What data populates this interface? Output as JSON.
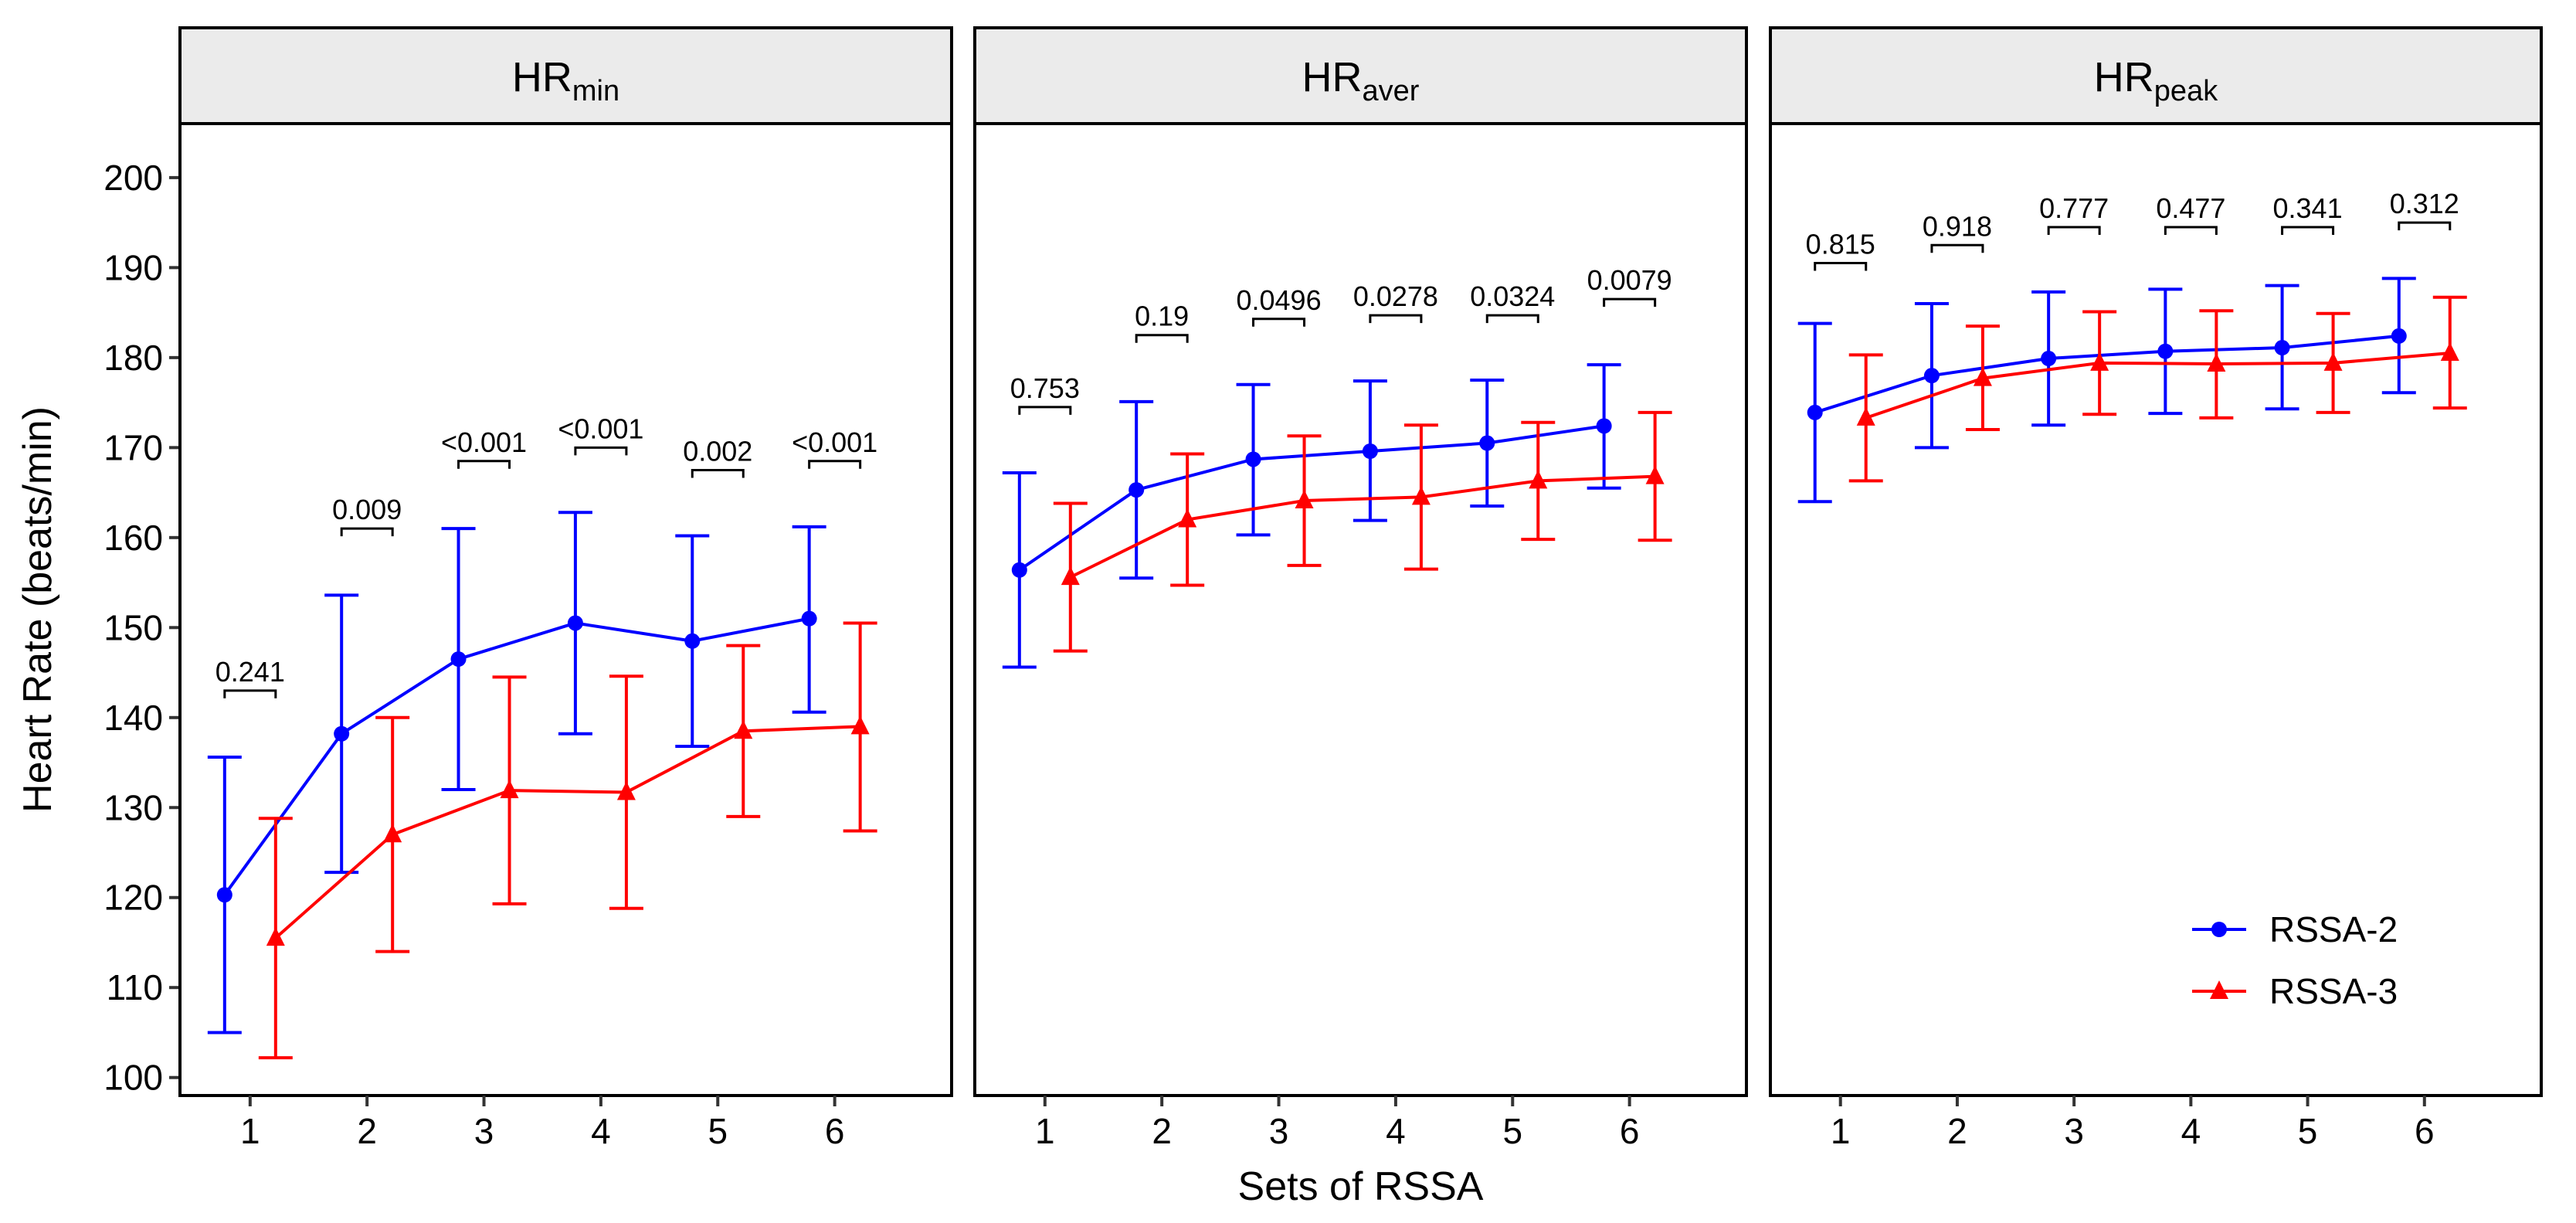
{
  "chart_data": {
    "type": "line",
    "xlabel": "Sets of RSSA",
    "ylabel": "Heart Rate (beats/min)",
    "ylim": [
      98,
      206
    ],
    "y_ticks": [
      "100",
      "110",
      "120",
      "130",
      "140",
      "150",
      "160",
      "170",
      "180",
      "190",
      "200"
    ],
    "x_ticks": [
      "1",
      "2",
      "3",
      "4",
      "5",
      "6"
    ],
    "legend": {
      "position": "bottom-right",
      "items": [
        {
          "name": "RSSA-2",
          "color": "#0000ff",
          "marker": "circle"
        },
        {
          "name": "RSSA-3",
          "color": "#ff0000",
          "marker": "triangle"
        }
      ]
    },
    "panels": [
      {
        "title_main": "HR",
        "title_sub": "min",
        "series": [
          {
            "name": "RSSA-2",
            "mean": [
              120.3,
              138.2,
              146.5,
              150.5,
              148.5,
              151.0
            ],
            "lower": [
              105.0,
              122.8,
              132.0,
              138.2,
              136.8,
              140.6
            ],
            "upper": [
              135.6,
              153.6,
              161.0,
              162.8,
              160.2,
              161.2
            ]
          },
          {
            "name": "RSSA-3",
            "mean": [
              115.5,
              127.0,
              131.9,
              131.7,
              138.5,
              139.0
            ],
            "lower": [
              102.2,
              114.0,
              119.3,
              118.8,
              129.0,
              127.4
            ],
            "upper": [
              128.8,
              140.0,
              144.5,
              144.6,
              148.0,
              150.5
            ]
          }
        ],
        "p_values": [
          {
            "label": "0.241",
            "y": 143.0
          },
          {
            "label": "0.009",
            "y": 161.0
          },
          {
            "label": "<0.001",
            "y": 168.5
          },
          {
            "label": "<0.001",
            "y": 170.0
          },
          {
            "label": "0.002",
            "y": 167.5
          },
          {
            "label": "<0.001",
            "y": 168.5
          }
        ]
      },
      {
        "title_main": "HR",
        "title_sub": "aver",
        "series": [
          {
            "name": "RSSA-2",
            "mean": [
              156.4,
              165.3,
              168.7,
              169.6,
              170.5,
              172.4
            ],
            "lower": [
              145.6,
              155.5,
              160.3,
              161.9,
              163.5,
              165.5
            ],
            "upper": [
              167.2,
              175.1,
              177.0,
              177.4,
              177.5,
              179.2
            ]
          },
          {
            "name": "RSSA-3",
            "mean": [
              155.6,
              162.0,
              164.1,
              164.5,
              166.3,
              166.8
            ],
            "lower": [
              147.4,
              154.7,
              156.9,
              156.5,
              159.8,
              159.7
            ],
            "upper": [
              163.8,
              169.3,
              171.3,
              172.5,
              172.8,
              173.9
            ]
          }
        ],
        "p_values": [
          {
            "label": "0.753",
            "y": 174.5
          },
          {
            "label": "0.19",
            "y": 182.5
          },
          {
            "label": "0.0496",
            "y": 184.3
          },
          {
            "label": "0.0278",
            "y": 184.7
          },
          {
            "label": "0.0324",
            "y": 184.7
          },
          {
            "label": "0.0079",
            "y": 186.5
          }
        ]
      },
      {
        "title_main": "HR",
        "title_sub": "peak",
        "series": [
          {
            "name": "RSSA-2",
            "mean": [
              173.9,
              178.0,
              179.9,
              180.7,
              181.1,
              182.4
            ],
            "lower": [
              164.0,
              170.0,
              172.5,
              173.8,
              174.3,
              176.1
            ],
            "upper": [
              183.8,
              186.0,
              187.3,
              187.6,
              188.0,
              188.8
            ]
          },
          {
            "name": "RSSA-3",
            "mean": [
              173.3,
              177.7,
              179.4,
              179.3,
              179.4,
              180.5
            ],
            "lower": [
              166.3,
              172.0,
              173.7,
              173.3,
              173.9,
              174.4
            ],
            "upper": [
              180.3,
              183.5,
              185.1,
              185.2,
              184.9,
              186.7
            ]
          }
        ],
        "p_values": [
          {
            "label": "0.815",
            "y": 190.5
          },
          {
            "label": "0.918",
            "y": 192.5
          },
          {
            "label": "0.777",
            "y": 194.5
          },
          {
            "label": "0.477",
            "y": 194.5
          },
          {
            "label": "0.341",
            "y": 194.5
          },
          {
            "label": "0.312",
            "y": 195.0
          }
        ]
      }
    ]
  }
}
